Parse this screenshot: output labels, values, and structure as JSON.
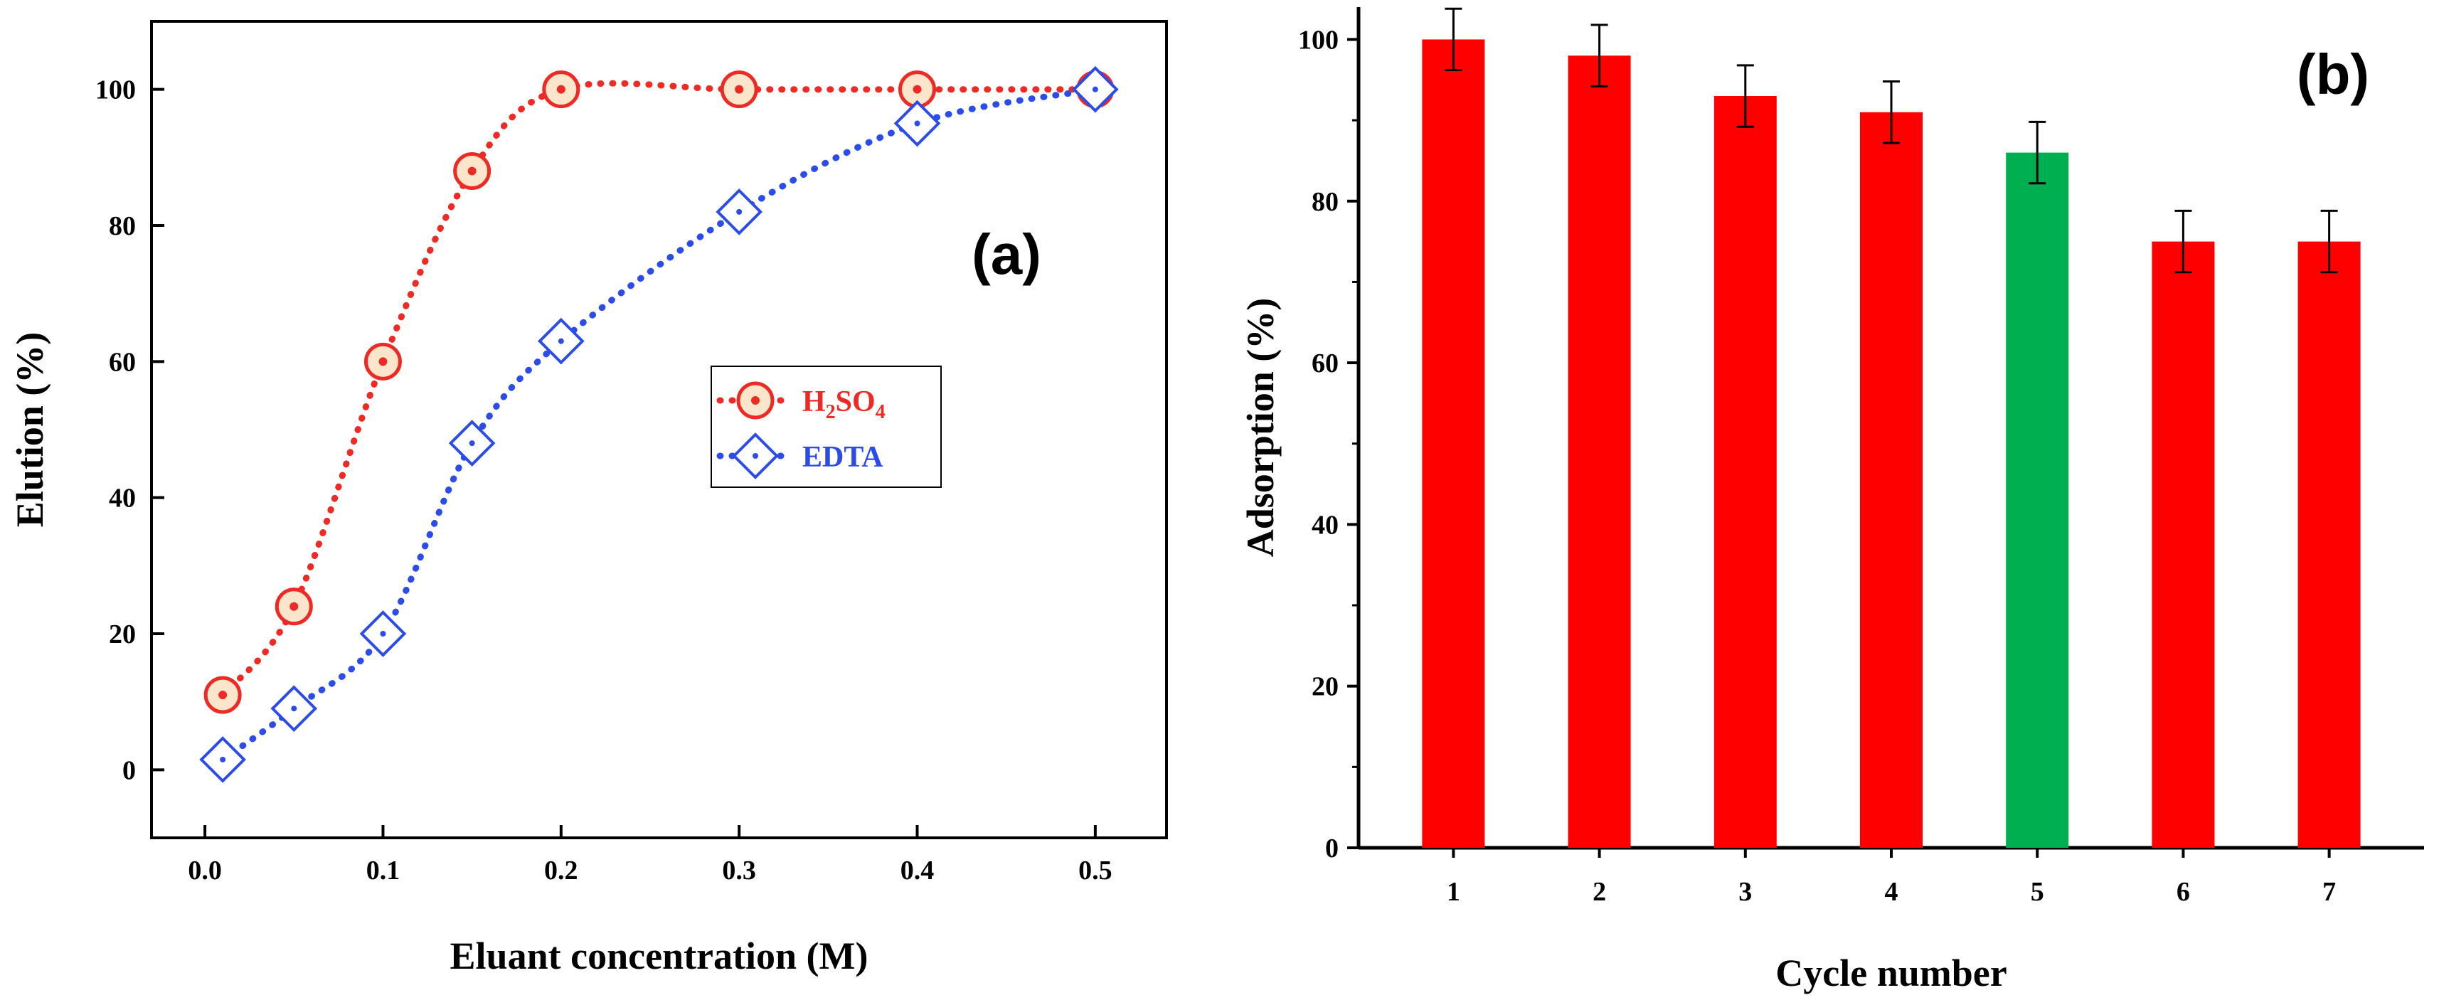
{
  "chart_data": [
    {
      "type": "line",
      "panel_label": "(a)",
      "xlabel": "Eluant concentration (M)",
      "ylabel": "Elution (%)",
      "xlim": [
        -0.03,
        0.54
      ],
      "ylim": [
        -10,
        110
      ],
      "xticks": [
        0.0,
        0.1,
        0.2,
        0.3,
        0.4,
        0.5
      ],
      "xtick_labels": [
        "0.0",
        "0.1",
        "0.2",
        "0.3",
        "0.4",
        "0.5"
      ],
      "yticks": [
        0,
        20,
        40,
        60,
        80,
        100
      ],
      "ytick_labels": [
        "0",
        "20",
        "40",
        "60",
        "80",
        "100"
      ],
      "legend": {
        "position": "center-right"
      },
      "series": [
        {
          "name": "H2SO4",
          "label_main": "H",
          "label_sub1": "2",
          "label_mid": "SO",
          "label_sub2": "4",
          "marker": "circle-dot",
          "line": "dotted",
          "color": "#ee2a24",
          "marker_fill": "#fbe6cc",
          "x": [
            0.01,
            0.05,
            0.1,
            0.15,
            0.2,
            0.3,
            0.4,
            0.5
          ],
          "y": [
            11,
            24,
            60,
            88,
            100,
            100,
            100,
            100
          ]
        },
        {
          "name": "EDTA",
          "label_main": "EDTA",
          "marker": "diamond-dot",
          "line": "dotted",
          "color": "#2b4ce8",
          "marker_fill": "#ffffff",
          "x": [
            0.01,
            0.05,
            0.1,
            0.15,
            0.2,
            0.3,
            0.4,
            0.5
          ],
          "y": [
            1.5,
            9,
            20,
            48,
            63,
            82,
            95,
            100
          ]
        }
      ]
    },
    {
      "type": "bar",
      "panel_label": "(b)",
      "xlabel": "Cycle number",
      "ylabel": "Adsorption (%)",
      "ylim": [
        0,
        104
      ],
      "yticks": [
        0,
        20,
        40,
        60,
        80,
        100
      ],
      "ytick_labels": [
        "0",
        "20",
        "40",
        "60",
        "80",
        "100"
      ],
      "categories": [
        "1",
        "2",
        "3",
        "4",
        "5",
        "6",
        "7"
      ],
      "values": [
        100,
        98,
        93,
        91,
        86,
        75,
        75
      ],
      "errors": [
        3.8,
        3.8,
        3.8,
        3.8,
        3.8,
        3.8,
        3.8
      ],
      "bar_colors": [
        "#ff0000",
        "#ff0000",
        "#ff0000",
        "#ff0000",
        "#00b050",
        "#ff0000",
        "#ff0000"
      ]
    }
  ]
}
